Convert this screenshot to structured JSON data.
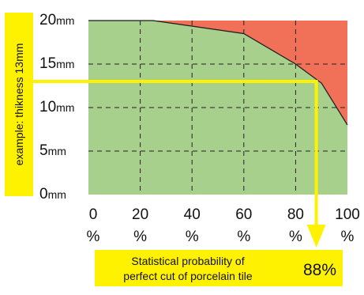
{
  "chart_data": {
    "type": "area",
    "x": [
      0,
      25,
      60,
      80,
      90,
      100
    ],
    "boundary_mm": [
      20,
      20,
      18.5,
      15,
      12.8,
      8
    ],
    "xlim": [
      0,
      100
    ],
    "ylim": [
      0,
      20
    ],
    "y_ticks": [
      {
        "value": 0,
        "num": "0",
        "unit": "mm"
      },
      {
        "value": 5,
        "num": "5",
        "unit": "mm"
      },
      {
        "value": 10,
        "num": "10",
        "unit": "mm"
      },
      {
        "value": 15,
        "num": "15",
        "unit": "mm"
      },
      {
        "value": 20,
        "num": "20",
        "unit": "mm"
      }
    ],
    "x_ticks": [
      {
        "value": 0,
        "label": "0",
        "suffix": "%"
      },
      {
        "value": 20,
        "label": "20",
        "suffix": "%"
      },
      {
        "value": 40,
        "label": "40",
        "suffix": "%"
      },
      {
        "value": 60,
        "label": "60",
        "suffix": "%"
      },
      {
        "value": 80,
        "label": "80",
        "suffix": "%"
      },
      {
        "value": 100,
        "label": "100",
        "suffix": "%"
      }
    ],
    "grid": true,
    "example": {
      "thickness_mm": 13,
      "probability_percent": 88
    },
    "colors": {
      "good": "#a8d08d",
      "bad": "#f07158",
      "highlight": "#fff200",
      "grid": "#222222"
    }
  },
  "annotations": {
    "example_label": "example: thikness 13mm",
    "note_line1": "Statistical probability of",
    "note_line2": "perfect cut of porcelain tile",
    "note_value": "88%"
  }
}
